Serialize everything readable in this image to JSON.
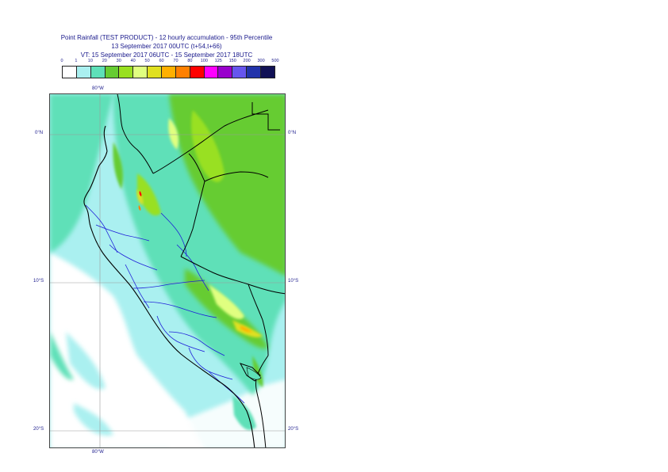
{
  "header": {
    "line1": "Point Rainfall (TEST PRODUCT) - 12 hourly accumulation - 95th Percentile",
    "line2": "13 September 2017 00UTC (t+54,t+66)",
    "line3": "VT: 15 September 2017 06UTC - 15 September 2017 18UTC"
  },
  "legend": {
    "ticks": [
      "0",
      "1",
      "10",
      "20",
      "30",
      "40",
      "50",
      "60",
      "70",
      "80",
      "100",
      "125",
      "150",
      "200",
      "300",
      "500"
    ],
    "colors": [
      "#ffffff",
      "#aaf0f0",
      "#5ee0b8",
      "#66cc33",
      "#99e020",
      "#e0ff80",
      "#e0e020",
      "#ffb000",
      "#ff8000",
      "#ff0000",
      "#ff00ff",
      "#9900cc",
      "#6655ee",
      "#2233aa",
      "#111155"
    ]
  },
  "axes": {
    "lon_top": "80°W",
    "lon_bottom": "80°W",
    "lat_left": [
      "0°N",
      "10°S",
      "20°S"
    ],
    "lat_right": [
      "0°N",
      "10°S",
      "20°S"
    ]
  }
}
